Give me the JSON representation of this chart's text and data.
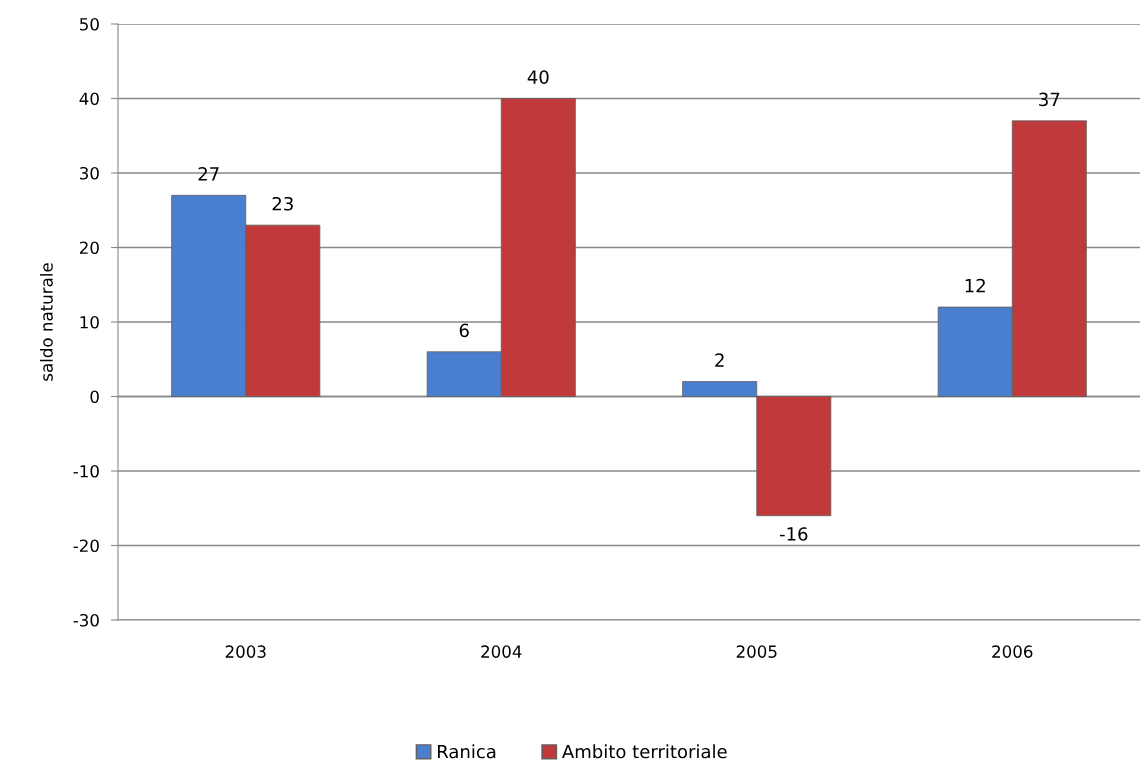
{
  "chart_data": {
    "type": "bar",
    "ylabel": "saldo naturale",
    "categories": [
      "2003",
      "2004",
      "2005",
      "2006"
    ],
    "series": [
      {
        "name": "Ranica",
        "color": "#4a7fcf",
        "values": [
          27,
          6,
          2,
          12
        ]
      },
      {
        "name": "Ambito territoriale",
        "color": "#c0393b",
        "values": [
          23,
          40,
          -16,
          37
        ]
      }
    ],
    "ylim": [
      -30,
      50
    ],
    "yticks": [
      -30,
      -20,
      -10,
      0,
      10,
      20,
      30,
      40,
      50
    ],
    "grid": "y",
    "legend": "bottom",
    "data_labels": true
  }
}
